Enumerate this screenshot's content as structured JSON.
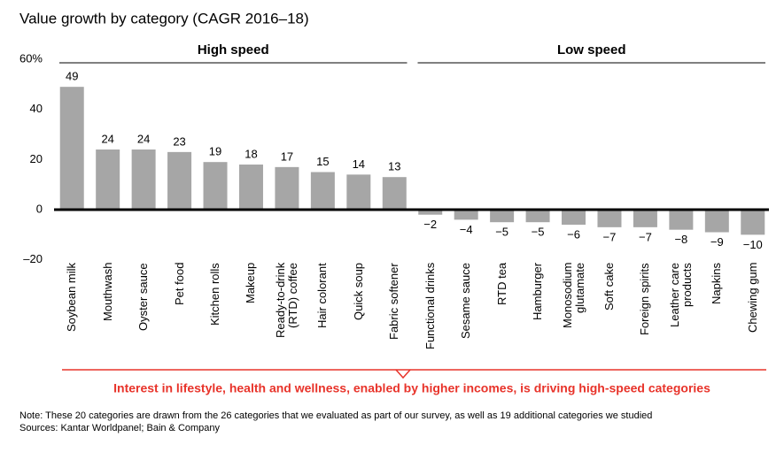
{
  "chart_data": {
    "type": "bar",
    "title": "Value growth by category (CAGR 2016–18)",
    "groups": [
      "High speed",
      "Low speed"
    ],
    "categories": [
      "Soybean milk",
      "Mouthwash",
      "Oyster sauce",
      "Pet food",
      "Kitchen rolls",
      "Makeup",
      "Ready-to-drink\n(RTD) coffee",
      "Hair colorant",
      "Quick soup",
      "Fabric softener",
      "Functional drinks",
      "Sesame sauce",
      "RTD tea",
      "Hamburger",
      "Monosodium\nglutamate",
      "Soft cake",
      "Foreign spirits",
      "Leather care\nproducts",
      "Napkins",
      "Chewing gum"
    ],
    "values": [
      49,
      24,
      24,
      23,
      19,
      18,
      17,
      15,
      14,
      13,
      -2,
      -4,
      -5,
      -5,
      -6,
      -7,
      -7,
      -8,
      -9,
      -10
    ],
    "value_labels": [
      "49",
      "24",
      "24",
      "23",
      "19",
      "18",
      "17",
      "15",
      "14",
      "13",
      "−2",
      "−4",
      "−5",
      "−5",
      "−6",
      "−7",
      "−7",
      "−8",
      "−9",
      "−10"
    ],
    "color": "#a6a6a6",
    "ylim": [
      -20,
      60
    ],
    "yticks": [
      {
        "value": 60,
        "label": "60%"
      },
      40,
      20,
      0,
      {
        "value": -20,
        "label": "–20"
      }
    ],
    "grid": false,
    "annotation": "Interest in lifestyle, health and wellness, enabled by higher incomes, is driving high-speed categories",
    "note": "Note: These 20 categories are drawn from the 26 categories that we evaluated as part of our survey, as well as 19 additional categories we studied",
    "sources": "Sources: Kantar Worldpanel; Bain & Company"
  }
}
